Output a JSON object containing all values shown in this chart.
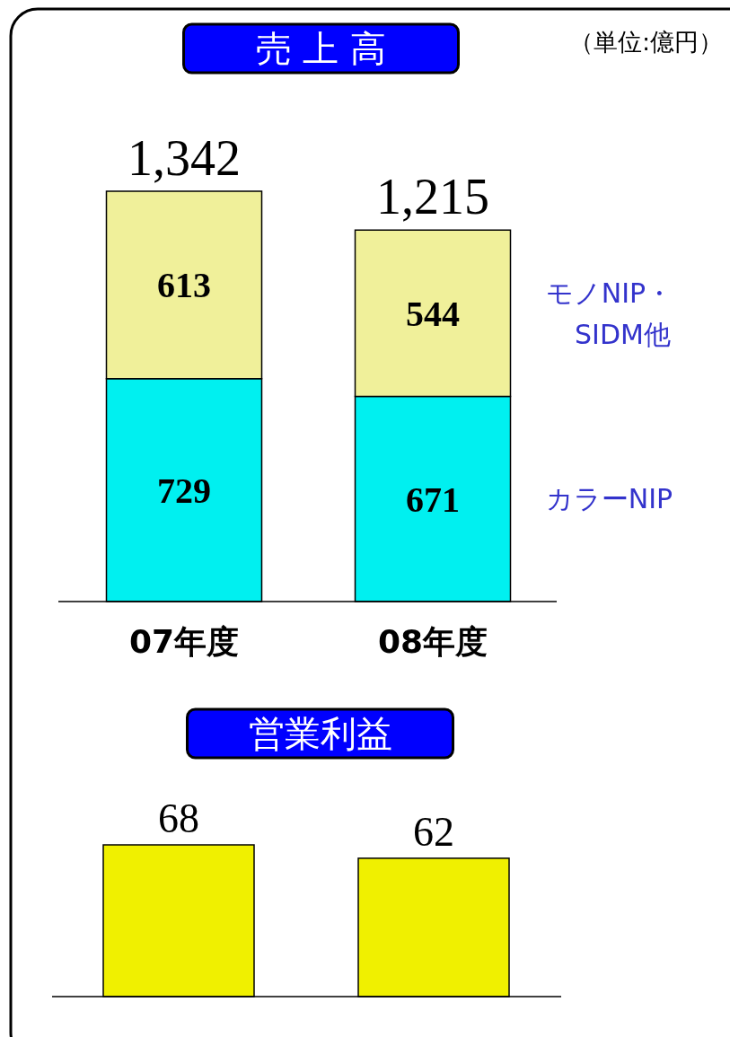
{
  "chart_data": [
    {
      "type": "bar",
      "title": "売 上 高",
      "annotations": [
        "（単位:億円）"
      ],
      "categories": [
        "07年度",
        "08年度"
      ],
      "stacked": true,
      "data_labels": true,
      "totals": [
        "1,342",
        "1,215"
      ],
      "series": [
        {
          "name": "カラーNIP",
          "color": "#00f0f0",
          "values": [
            729,
            671
          ]
        },
        {
          "name": "モノNIP・SIDM他",
          "color": "#f0f09a",
          "values": [
            613,
            544
          ]
        }
      ]
    },
    {
      "type": "bar",
      "title": "営業利益",
      "categories": [
        null,
        null
      ],
      "data_labels": true,
      "series": [
        {
          "color": "#f0f000",
          "values": [
            68,
            62
          ]
        }
      ]
    }
  ]
}
